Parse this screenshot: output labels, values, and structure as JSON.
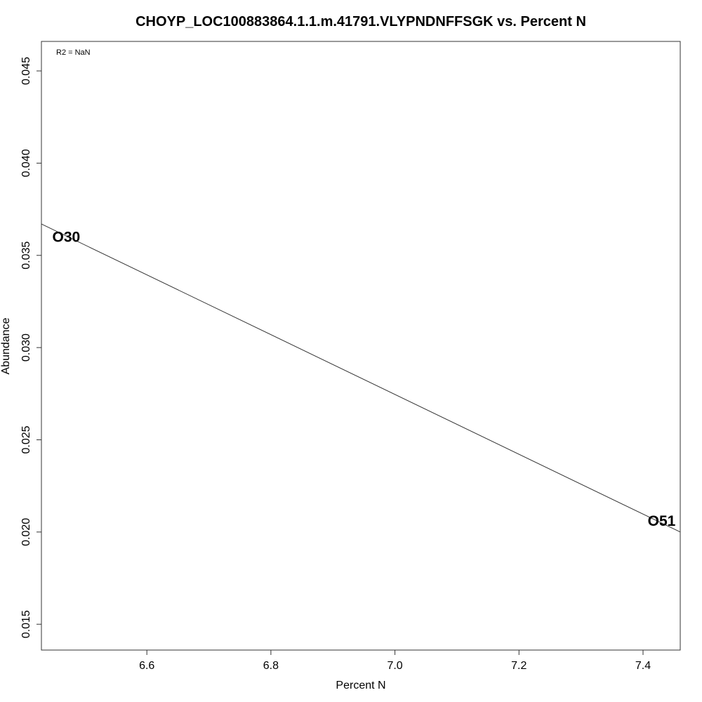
{
  "chart_data": {
    "type": "scatter",
    "title": "CHOYP_LOC100883864.1.1.m.41791.VLYPNDNFFSGK vs. Percent N",
    "xlabel": "Percent N",
    "ylabel": "Abundance",
    "annotation": "R2 = NaN",
    "xlim": [
      6.43,
      7.46
    ],
    "ylim": [
      0.0136,
      0.0466
    ],
    "x_ticks": [
      6.6,
      6.8,
      7.0,
      7.2,
      7.4
    ],
    "x_tick_labels": [
      "6.6",
      "6.8",
      "7.0",
      "7.2",
      "7.4"
    ],
    "y_ticks": [
      0.015,
      0.02,
      0.025,
      0.03,
      0.035,
      0.04,
      0.045
    ],
    "y_tick_labels": [
      "0.015",
      "0.020",
      "0.025",
      "0.030",
      "0.035",
      "0.040",
      "0.045"
    ],
    "points": [
      {
        "label": "O30",
        "x": 6.47,
        "y": 0.036
      },
      {
        "label": "O51",
        "x": 7.43,
        "y": 0.0206
      }
    ],
    "fit_line": {
      "x": [
        6.43,
        7.46
      ],
      "y": [
        0.0367,
        0.02
      ]
    },
    "grid": false,
    "legend": "none"
  }
}
